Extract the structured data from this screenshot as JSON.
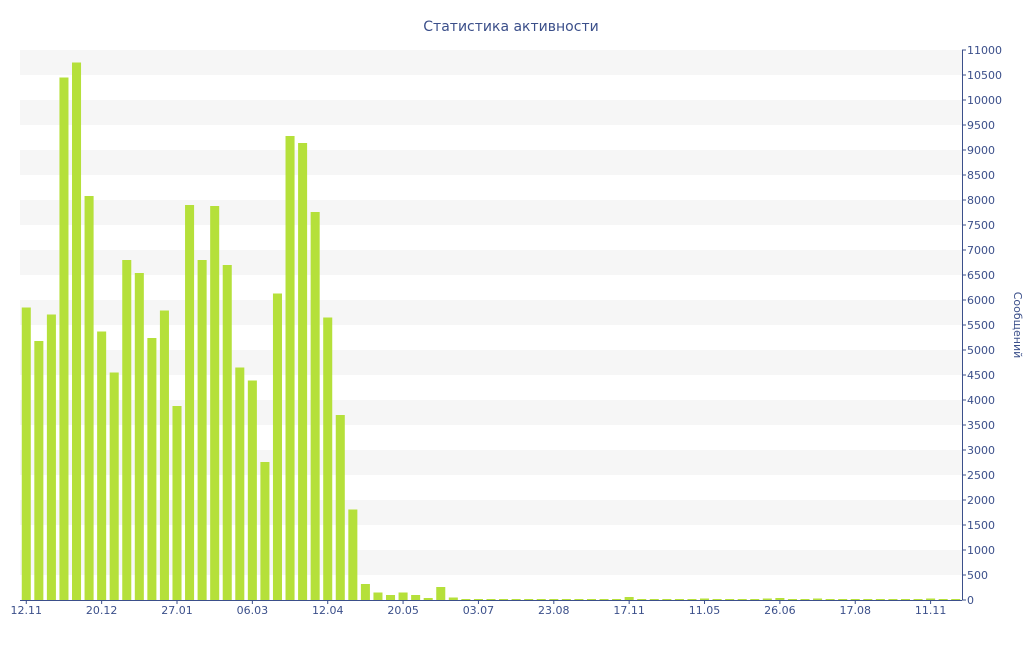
{
  "chart_data": {
    "type": "bar",
    "title": "Статистика активности",
    "ylabel": "Сообщений",
    "xlabel": "",
    "ylim": [
      0,
      11000
    ],
    "yticks": [
      0,
      500,
      1000,
      1500,
      2000,
      2500,
      3000,
      3500,
      4000,
      4500,
      5000,
      5500,
      6000,
      6500,
      7000,
      7500,
      8000,
      8500,
      9000,
      9500,
      10000,
      10500,
      11000
    ],
    "x_tick_labels": [
      {
        "label": "12.11",
        "index": 0
      },
      {
        "label": "20.12",
        "index": 6
      },
      {
        "label": "27.01",
        "index": 12
      },
      {
        "label": "06.03",
        "index": 18
      },
      {
        "label": "12.04",
        "index": 24
      },
      {
        "label": "20.05",
        "index": 30
      },
      {
        "label": "03.07",
        "index": 36
      },
      {
        "label": "23.08",
        "index": 42
      },
      {
        "label": "17.11",
        "index": 48
      },
      {
        "label": "11.05",
        "index": 54
      },
      {
        "label": "26.06",
        "index": 60
      },
      {
        "label": "17.08",
        "index": 66
      },
      {
        "label": "11.11",
        "index": 72
      }
    ],
    "grid": "horizontal alternating bands",
    "axis_position": "right",
    "bar_color": "#b5e03a",
    "values": [
      5850,
      5180,
      5710,
      10450,
      10750,
      8080,
      5370,
      4550,
      6800,
      6540,
      5240,
      5790,
      3880,
      7900,
      6800,
      7880,
      6700,
      4650,
      4390,
      2760,
      6130,
      9280,
      9140,
      7760,
      5650,
      3700,
      1810,
      320,
      150,
      100,
      150,
      100,
      40,
      260,
      50,
      20,
      20,
      20,
      20,
      20,
      20,
      20,
      20,
      20,
      20,
      20,
      20,
      20,
      60,
      20,
      20,
      20,
      20,
      20,
      30,
      20,
      20,
      20,
      20,
      30,
      40,
      20,
      20,
      30,
      20,
      20,
      20,
      20,
      20,
      20,
      20,
      20,
      30,
      20,
      20
    ]
  },
  "colors": {
    "title": "#3b4f8a",
    "axis": "#3b4f8a",
    "band": "#f6f6f6",
    "bar": "#b5e03a"
  }
}
